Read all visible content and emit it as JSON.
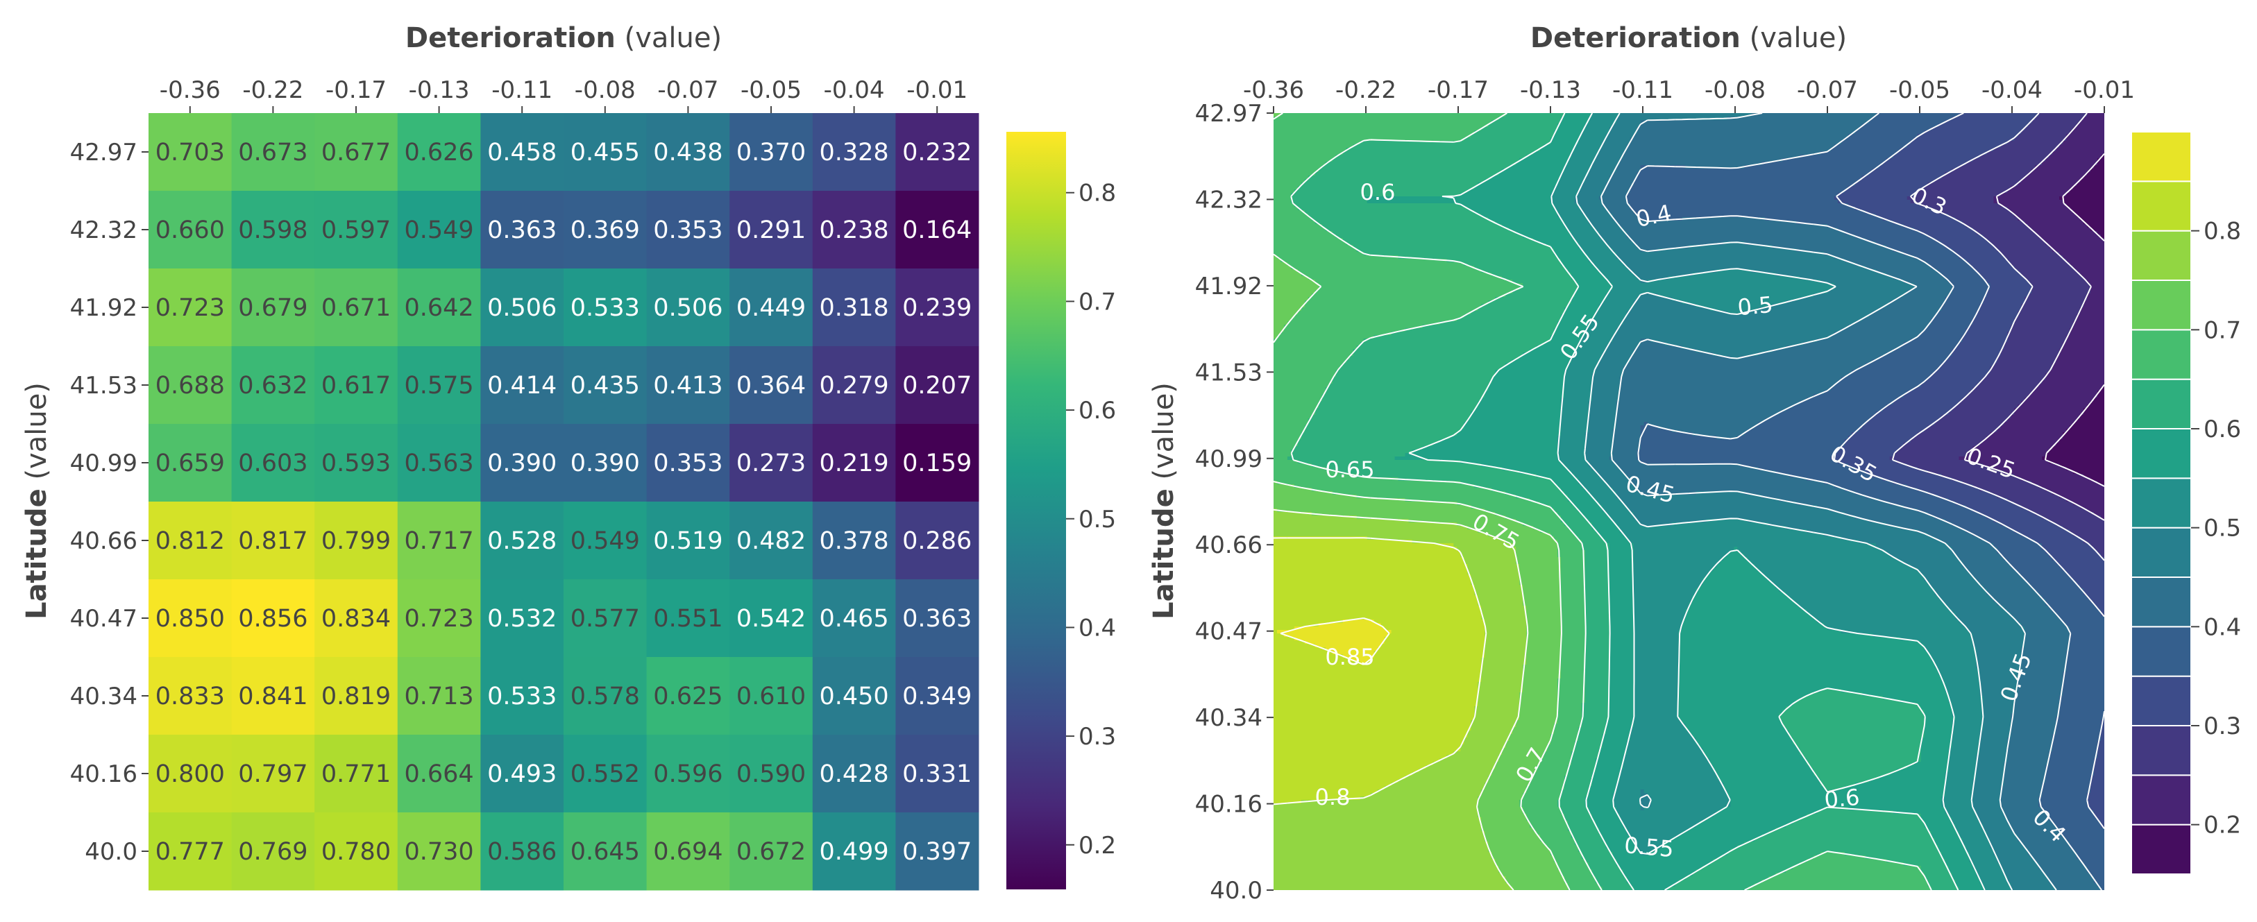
{
  "colors": {
    "colorscale": [
      "#440154",
      "#482878",
      "#3e4989",
      "#31688e",
      "#26828e",
      "#1f9e89",
      "#35b779",
      "#6ece58",
      "#b5de2b",
      "#fde725"
    ],
    "contour_line": "#ffffff",
    "text_dark": "#444444",
    "text_light": "#ffffff"
  },
  "chart_data": [
    {
      "type": "heatmap",
      "title": "",
      "xlabel_bold": "Deterioration",
      "xlabel_suffix": " (value)",
      "ylabel_bold": "Latitude",
      "ylabel_suffix": " (value)",
      "x_ticks": [
        "-0.36",
        "-0.22",
        "-0.17",
        "-0.13",
        "-0.11",
        "-0.08",
        "-0.07",
        "-0.05",
        "-0.04",
        "-0.01"
      ],
      "y_ticks": [
        "42.97",
        "42.32",
        "41.92",
        "41.53",
        "40.99",
        "40.66",
        "40.47",
        "40.34",
        "40.16",
        "40.0"
      ],
      "z": [
        [
          "0.703",
          "0.673",
          "0.677",
          "0.626",
          "0.458",
          "0.455",
          "0.438",
          "0.370",
          "0.328",
          "0.232"
        ],
        [
          "0.660",
          "0.598",
          "0.597",
          "0.549",
          "0.363",
          "0.369",
          "0.353",
          "0.291",
          "0.238",
          "0.164"
        ],
        [
          "0.723",
          "0.679",
          "0.671",
          "0.642",
          "0.506",
          "0.533",
          "0.506",
          "0.449",
          "0.318",
          "0.239"
        ],
        [
          "0.688",
          "0.632",
          "0.617",
          "0.575",
          "0.414",
          "0.435",
          "0.413",
          "0.364",
          "0.279",
          "0.207"
        ],
        [
          "0.659",
          "0.603",
          "0.593",
          "0.563",
          "0.390",
          "0.390",
          "0.353",
          "0.273",
          "0.219",
          "0.159"
        ],
        [
          "0.812",
          "0.817",
          "0.799",
          "0.717",
          "0.528",
          "0.549",
          "0.519",
          "0.482",
          "0.378",
          "0.286"
        ],
        [
          "0.850",
          "0.856",
          "0.834",
          "0.723",
          "0.532",
          "0.577",
          "0.551",
          "0.542",
          "0.465",
          "0.363"
        ],
        [
          "0.833",
          "0.841",
          "0.819",
          "0.713",
          "0.533",
          "0.578",
          "0.625",
          "0.610",
          "0.450",
          "0.349"
        ],
        [
          "0.800",
          "0.797",
          "0.771",
          "0.664",
          "0.493",
          "0.552",
          "0.596",
          "0.590",
          "0.428",
          "0.331"
        ],
        [
          "0.777",
          "0.769",
          "0.780",
          "0.730",
          "0.586",
          "0.645",
          "0.694",
          "0.672",
          "0.499",
          "0.397"
        ]
      ],
      "zrange": [
        0.159,
        0.856
      ],
      "colorbar_ticks": [
        "0.2",
        "0.3",
        "0.4",
        "0.5",
        "0.6",
        "0.7",
        "0.8"
      ]
    },
    {
      "type": "contour",
      "title": "",
      "xlabel_bold": "Deterioration",
      "xlabel_suffix": " (value)",
      "ylabel_bold": "Latitude",
      "ylabel_suffix": " (value)",
      "x_ticks": [
        "-0.36",
        "-0.22",
        "-0.17",
        "-0.13",
        "-0.11",
        "-0.08",
        "-0.07",
        "-0.05",
        "-0.04",
        "-0.01"
      ],
      "y_ticks": [
        "42.97",
        "42.32",
        "41.92",
        "41.53",
        "40.99",
        "40.66",
        "40.47",
        "40.34",
        "40.16",
        "40.0"
      ],
      "contour_levels": [
        0.2,
        0.25,
        0.3,
        0.35,
        0.4,
        0.45,
        0.5,
        0.55,
        0.6,
        0.65,
        0.7,
        0.75,
        0.8,
        0.85
      ],
      "contour_labels": [
        "0.6",
        "0.4",
        "0.3",
        "0.5",
        "0.55",
        "0.65",
        "0.35",
        "0.25",
        "0.45",
        "0.75",
        "0.85",
        "0.45",
        "0.7",
        "0.8",
        "0.6",
        "0.55",
        "0.4"
      ],
      "colorbar_ticks": [
        "0.2",
        "0.3",
        "0.4",
        "0.5",
        "0.6",
        "0.7",
        "0.8"
      ]
    }
  ]
}
